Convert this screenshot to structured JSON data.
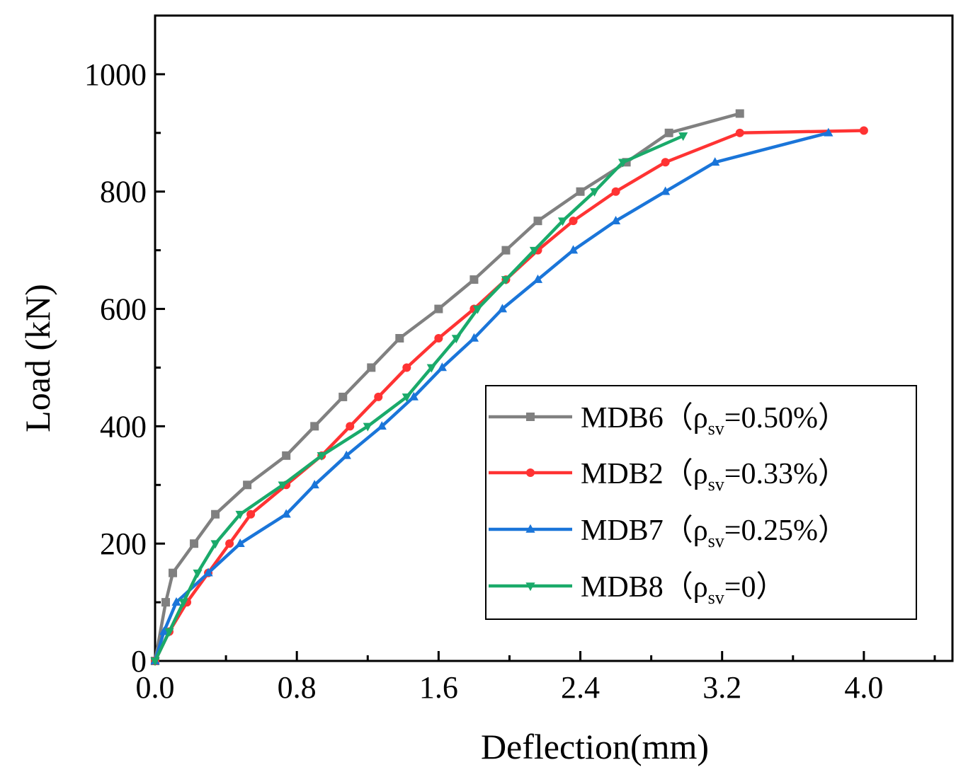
{
  "chart_data": {
    "type": "line",
    "title": "",
    "xlabel": "Deflection(mm)",
    "ylabel": "Load (kN)",
    "xlim": [
      0,
      4.5
    ],
    "ylim": [
      0,
      1100
    ],
    "x_ticks": [
      0.0,
      0.8,
      1.6,
      2.4,
      3.2,
      4.0
    ],
    "x_tick_labels": [
      "0.0",
      "0.8",
      "1.6",
      "2.4",
      "3.2",
      "4.0"
    ],
    "y_ticks": [
      0,
      200,
      400,
      600,
      800,
      1000
    ],
    "y_tick_labels": [
      "0",
      "200",
      "400",
      "600",
      "800",
      "1000"
    ],
    "legend_position": "lower-right",
    "series": [
      {
        "name": "MDB6",
        "legend_label": {
          "prefix": "MDB6（ρ",
          "sub": "sv",
          "suffix": "=0.50%）"
        },
        "color": "#808080",
        "marker": "square",
        "x": [
          0,
          0.06,
          0.1,
          0.22,
          0.34,
          0.52,
          0.74,
          0.9,
          1.06,
          1.22,
          1.38,
          1.6,
          1.8,
          1.98,
          2.16,
          2.4,
          2.66,
          2.9,
          3.3
        ],
        "y": [
          0,
          100,
          150,
          200,
          250,
          300,
          350,
          400,
          450,
          500,
          550,
          600,
          650,
          700,
          750,
          800,
          850,
          900,
          933
        ]
      },
      {
        "name": "MDB2",
        "legend_label": {
          "prefix": "MDB2（ρ",
          "sub": "sv",
          "suffix": "=0.33%）"
        },
        "color": "#ff3333",
        "marker": "circle",
        "x": [
          0,
          0.08,
          0.18,
          0.3,
          0.42,
          0.54,
          0.74,
          0.94,
          1.1,
          1.26,
          1.42,
          1.6,
          1.8,
          1.98,
          2.16,
          2.36,
          2.6,
          2.88,
          3.3,
          4.0
        ],
        "y": [
          0,
          50,
          100,
          150,
          200,
          250,
          300,
          350,
          400,
          450,
          500,
          550,
          600,
          650,
          700,
          750,
          800,
          850,
          900,
          904
        ]
      },
      {
        "name": "MDB7",
        "legend_label": {
          "prefix": "MDB7（ρ",
          "sub": "sv",
          "suffix": "=0.25%）"
        },
        "color": "#1a75d9",
        "marker": "triangle-up",
        "x": [
          0,
          0.05,
          0.12,
          0.3,
          0.48,
          0.74,
          0.9,
          1.08,
          1.28,
          1.46,
          1.62,
          1.8,
          1.96,
          2.16,
          2.36,
          2.6,
          2.88,
          3.16,
          3.8
        ],
        "y": [
          0,
          50,
          100,
          150,
          200,
          250,
          300,
          350,
          400,
          450,
          500,
          550,
          600,
          650,
          700,
          750,
          800,
          850,
          900
        ]
      },
      {
        "name": "MDB8",
        "legend_label": {
          "prefix": "MDB8（ρ",
          "sub": "sv",
          "suffix": "=0）"
        },
        "color": "#1aaa6a",
        "marker": "triangle-down",
        "x": [
          0,
          0.08,
          0.16,
          0.24,
          0.34,
          0.48,
          0.72,
          0.94,
          1.2,
          1.42,
          1.56,
          1.7,
          1.82,
          1.98,
          2.14,
          2.3,
          2.48,
          2.64,
          2.98
        ],
        "y": [
          0,
          50,
          100,
          150,
          200,
          250,
          300,
          350,
          400,
          450,
          500,
          550,
          600,
          650,
          700,
          750,
          800,
          850,
          895
        ]
      }
    ]
  }
}
